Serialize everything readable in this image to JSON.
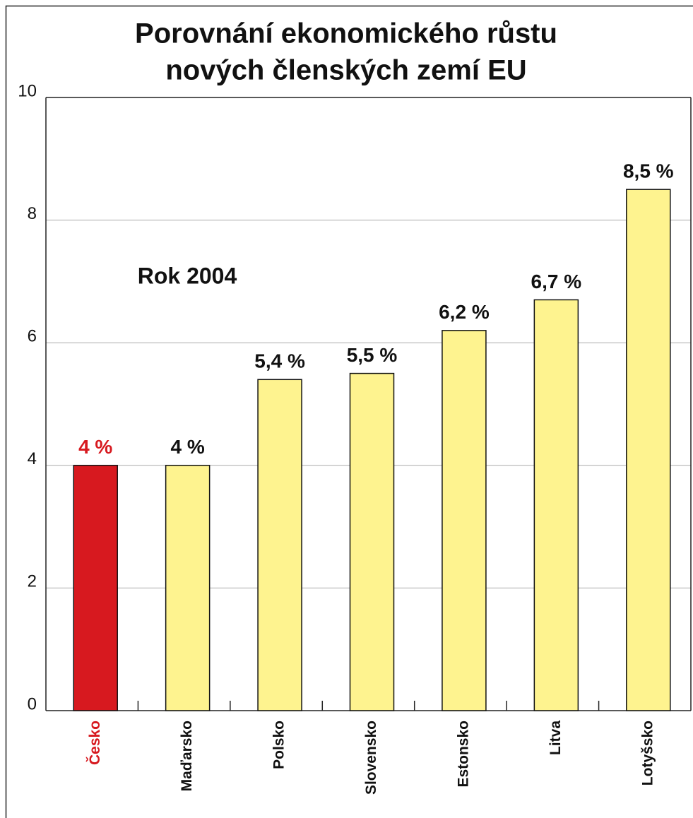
{
  "chart_data": {
    "type": "bar",
    "title": [
      "Porovnání ekonomického růstu",
      "nových členských zemí EU"
    ],
    "annotation": "Rok 2004",
    "categories": [
      "Česko",
      "Maďarsko",
      "Polsko",
      "Slovensko",
      "Estonsko",
      "Litva",
      "Lotyšsko"
    ],
    "values": [
      4,
      4,
      5.4,
      5.5,
      6.2,
      6.7,
      8.5
    ],
    "value_labels": [
      "4 %",
      "4 %",
      "5,4 %",
      "5,5 %",
      "6,2 %",
      "6,7 %",
      "8,5 %"
    ],
    "colors": [
      "#d7191f",
      "#fef38f",
      "#fef38f",
      "#fef38f",
      "#fef38f",
      "#fef38f",
      "#fef38f"
    ],
    "label_colors": [
      "#d7191f",
      "#111111",
      "#111111",
      "#111111",
      "#111111",
      "#111111",
      "#111111"
    ],
    "ylim": [
      0,
      10
    ],
    "yticks": [
      0,
      2,
      4,
      6,
      8,
      10
    ],
    "grid": true
  }
}
